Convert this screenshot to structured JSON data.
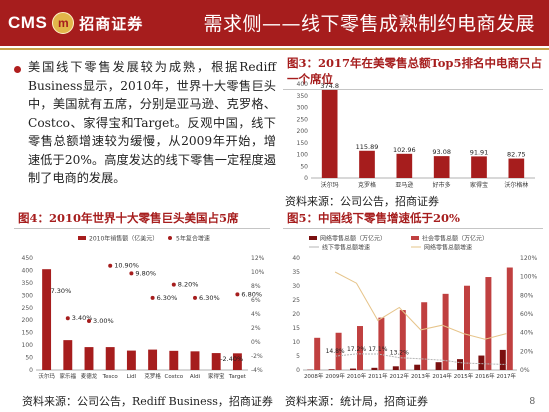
{
  "header": {
    "logo_cms": "CMS",
    "logo_emblem": "m",
    "logo_cn": "招商证券",
    "title": "需求侧——线下零售成熟制约电商发展"
  },
  "bullet": "美国线下零售发展较为成熟，根据Rediff Business显示，2010年，世界十大零售巨头中，美国就有五席，分别是亚马逊、克罗格、Costco、家得宝和Target。反观中国，线下零售总额增速较为缓慢，从2009年开始，增速低于20%。高度发达的线下零售一定程度遏制了电商的发展。",
  "page_number": "8",
  "chart_data": [
    {
      "id": "fig3",
      "type": "bar",
      "title": "图3：2017年在美零售总额Top5排名中电商只占一个席位",
      "source": "资料来源：公司公告，招商证券",
      "categories": [
        "沃尔玛",
        "克罗格",
        "亚马逊",
        "好市多",
        "家得宝",
        "沃尔格林"
      ],
      "values": [
        374.8,
        115.89,
        102.96,
        93.08,
        91.91,
        82.75
      ],
      "value_labels": [
        "374.8",
        "115.89",
        "102.96",
        "93.08",
        "91.91",
        "82.75"
      ],
      "ylim": [
        0,
        400
      ],
      "yticks": [
        "0",
        "50",
        "100",
        "150",
        "200",
        "250",
        "300",
        "350",
        "400"
      ],
      "color": "#a61d1d"
    },
    {
      "id": "fig4",
      "type": "bar",
      "title": "图4：2010年世界十大零售巨头美国占5席",
      "source": "资料来源：公司公告，Rediff Business，招商证券",
      "legend": [
        "2010年销售额（亿美元）",
        "5年复合增速"
      ],
      "categories": [
        "沃尔玛",
        "家乐福",
        "麦德龙",
        "Tesco",
        "Lidl",
        "克罗格",
        "Costco",
        "Aldi",
        "家得宝",
        "Target"
      ],
      "values": [
        405,
        120,
        92,
        92,
        78,
        82,
        77,
        75,
        68,
        67
      ],
      "ylim": [
        0,
        450
      ],
      "yticks": [
        "0",
        "50",
        "100",
        "150",
        "200",
        "250",
        "300",
        "350",
        "400",
        "450"
      ],
      "growth": [
        7.3,
        3.4,
        3.0,
        10.9,
        9.8,
        6.3,
        8.2,
        6.3,
        -2.4,
        6.8
      ],
      "growth_labels": [
        "7.30%",
        "3.40%",
        "3.00%",
        "10.90%",
        "9.80%",
        "6.30%",
        "8.20%",
        "6.30%",
        "-2.40%",
        "6.80%"
      ],
      "y2lim": [
        -4,
        12
      ],
      "y2ticks": [
        "-4%",
        "-2%",
        "0%",
        "2%",
        "4%",
        "6%",
        "8%",
        "10%",
        "12%"
      ],
      "color": "#a61d1d"
    },
    {
      "id": "fig5",
      "type": "bar",
      "title": "图5：中国线下零售增速低于20%",
      "source": "资料来源：统计局，招商证券",
      "legend": [
        "网络零售总额（万亿元）",
        "社会零售总额（万亿元）",
        "线下零售总额增速",
        "网络零售总额增速"
      ],
      "categories": [
        "2008年",
        "2009年",
        "2010年",
        "2011年",
        "2012年",
        "2013年",
        "2014年",
        "2015年",
        "2016年",
        "2017年"
      ],
      "online": [
        0.13,
        0.26,
        0.51,
        0.78,
        1.32,
        1.89,
        2.79,
        3.88,
        5.16,
        7.18
      ],
      "total": [
        11.5,
        13.3,
        15.7,
        18.7,
        21.4,
        24.2,
        27.2,
        30.1,
        33.2,
        36.6
      ],
      "ylim": [
        0,
        40
      ],
      "yticks": [
        "0",
        "5",
        "10",
        "15",
        "20",
        "25",
        "30",
        "35",
        "40"
      ],
      "offline_growth": [
        null,
        14.8,
        17.2,
        17.1,
        13.2,
        12.0,
        10.5,
        7.5,
        6.6,
        5.9
      ],
      "offline_growth_labels": [
        "",
        "14.8%",
        "17.2%",
        "17.1%",
        "13.2%",
        "",
        "",
        "",
        "",
        ""
      ],
      "online_growth": [
        null,
        105,
        93,
        53,
        67,
        43,
        48,
        39,
        33,
        39
      ],
      "y2lim": [
        0,
        120
      ],
      "y2ticks": [
        "0%",
        "20%",
        "40%",
        "60%",
        "80%",
        "100%",
        "120%"
      ],
      "bar_colors": [
        "#7a1010",
        "#c04040"
      ],
      "line_colors": [
        "#b5b5b5",
        "#e6c48a"
      ]
    }
  ]
}
